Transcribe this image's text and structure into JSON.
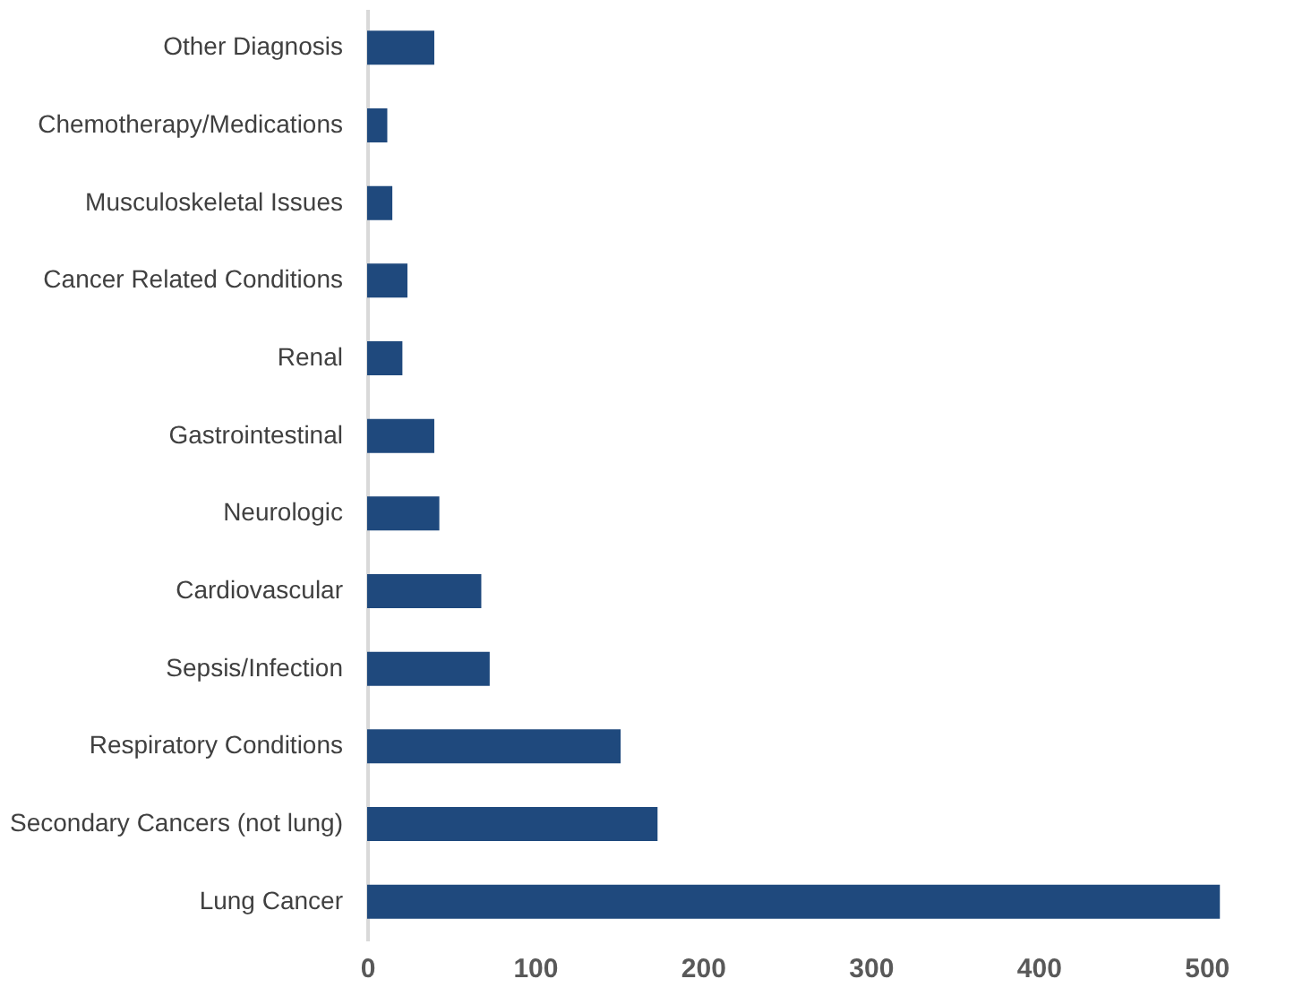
{
  "chart_data": {
    "type": "bar",
    "orientation": "horizontal",
    "categories": [
      "Other Diagnosis",
      "Chemotherapy/Medications",
      "Musculoskeletal Issues",
      "Cancer Related Conditions",
      "Renal",
      "Gastrointestinal",
      "Neurologic",
      "Cardiovascular",
      "Sepsis/Infection",
      "Respiratory Conditions",
      "Secondary Cancers (not lung)",
      "Lung Cancer"
    ],
    "values": [
      40,
      12,
      15,
      24,
      21,
      40,
      43,
      68,
      73,
      151,
      173,
      508
    ],
    "color": "#1f497d",
    "xlim": [
      0,
      510
    ],
    "xticks": [
      0,
      100,
      200,
      300,
      400,
      500
    ],
    "grid": false
  }
}
